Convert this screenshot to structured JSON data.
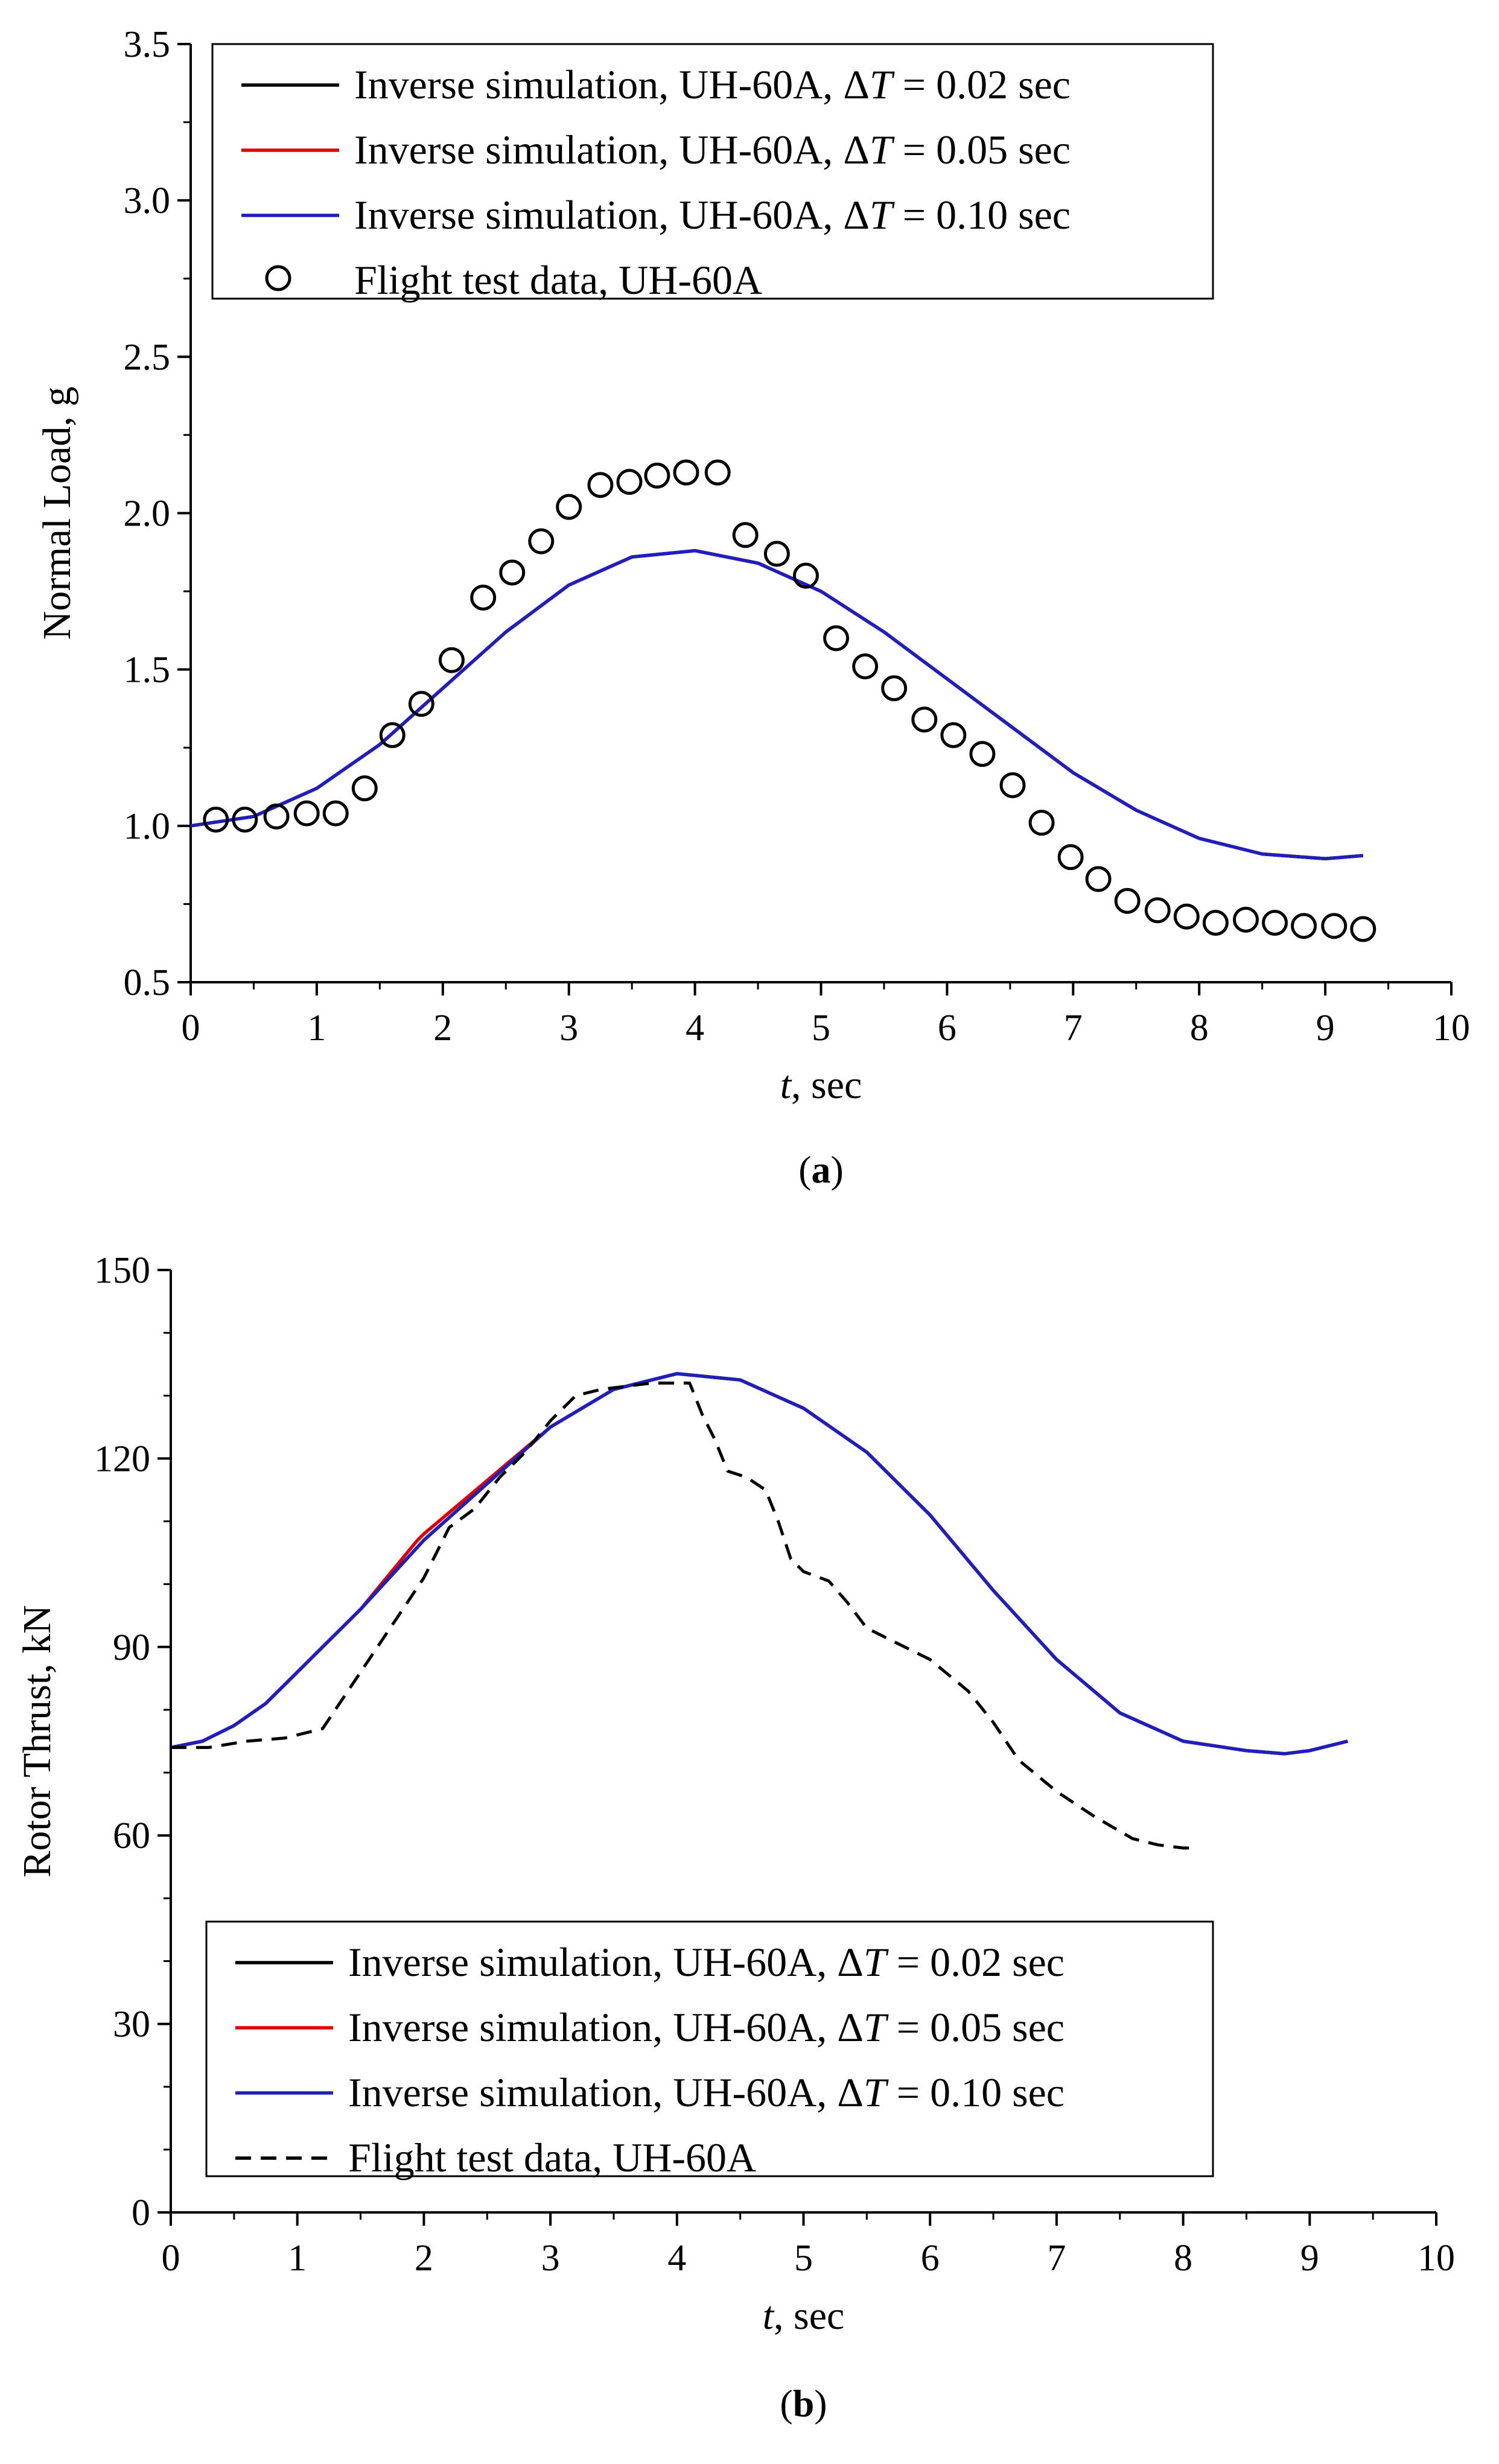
{
  "chart_data": [
    {
      "type": "line",
      "panel_label": "(a)",
      "xlabel": "t, sec",
      "ylabel": "Normal Load, g",
      "xlim": [
        0,
        10
      ],
      "ylim": [
        0.5,
        3.5
      ],
      "xticks": [
        "0",
        "1",
        "2",
        "3",
        "4",
        "5",
        "6",
        "7",
        "8",
        "9",
        "10"
      ],
      "yticks": [
        "0.5",
        "1.0",
        "1.5",
        "2.0",
        "2.5",
        "3.0",
        "3.5"
      ],
      "legend_position": "top-center",
      "series": [
        {
          "name": "Inverse simulation, UH-60A, ΔT = 0.02 sec",
          "legend_prefix": "Inverse simulation, UH-60A, Δ",
          "legend_suffix": " = 0.02 sec",
          "color": "#000000",
          "style": "solid",
          "x": [
            0,
            0.5,
            1,
            1.5,
            2,
            2.5,
            3,
            3.5,
            4,
            4.5,
            5,
            5.5,
            6,
            6.5,
            7,
            7.5,
            8,
            8.5,
            9,
            9.3
          ],
          "y": [
            1.0,
            1.03,
            1.12,
            1.26,
            1.44,
            1.62,
            1.77,
            1.86,
            1.88,
            1.84,
            1.75,
            1.62,
            1.47,
            1.32,
            1.17,
            1.05,
            0.96,
            0.91,
            0.895,
            0.905
          ]
        },
        {
          "name": "Inverse simulation, UH-60A, ΔT = 0.05 sec",
          "legend_prefix": "Inverse simulation, UH-60A, Δ",
          "legend_suffix": " = 0.05 sec",
          "color": "#e00000",
          "style": "solid",
          "x": [
            0,
            0.5,
            1,
            1.5,
            2,
            2.5,
            3,
            3.5,
            4,
            4.5,
            5,
            5.5,
            6,
            6.5,
            7,
            7.5,
            8,
            8.5,
            9,
            9.3
          ],
          "y": [
            1.0,
            1.03,
            1.12,
            1.26,
            1.44,
            1.62,
            1.77,
            1.86,
            1.88,
            1.84,
            1.75,
            1.62,
            1.47,
            1.32,
            1.17,
            1.05,
            0.96,
            0.91,
            0.895,
            0.905
          ]
        },
        {
          "name": "Inverse simulation, UH-60A, ΔT = 0.10 sec",
          "legend_prefix": "Inverse simulation, UH-60A, Δ",
          "legend_suffix": " = 0.10 sec",
          "color": "#1f1fbf",
          "style": "solid",
          "x": [
            0,
            0.5,
            1,
            1.5,
            2,
            2.5,
            3,
            3.5,
            4,
            4.5,
            5,
            5.5,
            6,
            6.5,
            7,
            7.5,
            8,
            8.5,
            9,
            9.3
          ],
          "y": [
            1.0,
            1.03,
            1.12,
            1.26,
            1.44,
            1.62,
            1.77,
            1.86,
            1.88,
            1.84,
            1.75,
            1.62,
            1.47,
            1.32,
            1.17,
            1.05,
            0.96,
            0.91,
            0.895,
            0.905
          ]
        },
        {
          "name": "Flight test data, UH-60A",
          "legend_prefix": "Flight test data, UH-60A",
          "legend_suffix": "",
          "color": "#000000",
          "style": "markers",
          "x": [
            0.2,
            0.43,
            0.68,
            0.92,
            1.15,
            1.38,
            1.6,
            1.83,
            2.07,
            2.32,
            2.55,
            2.78,
            3.0,
            3.25,
            3.48,
            3.7,
            3.93,
            4.18,
            4.4,
            4.65,
            4.88,
            5.12,
            5.35,
            5.58,
            5.82,
            6.05,
            6.28,
            6.52,
            6.75,
            6.98,
            7.2,
            7.43,
            7.67,
            7.9,
            8.13,
            8.37,
            8.6,
            8.83,
            9.07,
            9.3
          ],
          "y": [
            1.02,
            1.02,
            1.03,
            1.04,
            1.04,
            1.12,
            1.29,
            1.39,
            1.53,
            1.73,
            1.81,
            1.91,
            2.02,
            2.09,
            2.1,
            2.12,
            2.13,
            2.13,
            1.93,
            1.87,
            1.8,
            1.6,
            1.51,
            1.44,
            1.34,
            1.29,
            1.23,
            1.13,
            1.01,
            0.9,
            0.83,
            0.76,
            0.73,
            0.71,
            0.69,
            0.7,
            0.69,
            0.68,
            0.68,
            0.67
          ]
        }
      ]
    },
    {
      "type": "line",
      "panel_label": "(b)",
      "xlabel": "t, sec",
      "ylabel": "Rotor Thrust, kN",
      "xlim": [
        0,
        10
      ],
      "ylim": [
        0,
        150
      ],
      "xticks": [
        "0",
        "1",
        "2",
        "3",
        "4",
        "5",
        "6",
        "7",
        "8",
        "9",
        "10"
      ],
      "yticks": [
        "0",
        "30",
        "60",
        "90",
        "120",
        "150"
      ],
      "legend_position": "bottom-center",
      "series": [
        {
          "name": "Inverse simulation, UH-60A, ΔT = 0.02 sec",
          "legend_prefix": "Inverse simulation, UH-60A, Δ",
          "legend_suffix": " = 0.02 sec",
          "color": "#000000",
          "style": "solid",
          "x": [
            0,
            0.25,
            0.5,
            0.75,
            1,
            1.5,
            2,
            2.5,
            3,
            3.5,
            4,
            4.5,
            5,
            5.5,
            6,
            6.5,
            7,
            7.5,
            8,
            8.5,
            8.8,
            9,
            9.3
          ],
          "y": [
            74,
            75,
            77.5,
            81,
            86,
            96,
            107,
            116,
            125,
            131,
            133.5,
            132.5,
            128,
            121,
            111,
            99,
            88,
            79.5,
            75,
            73.5,
            73,
            73.5,
            75
          ]
        },
        {
          "name": "Inverse simulation, UH-60A, ΔT = 0.05 sec",
          "legend_prefix": "Inverse simulation, UH-60A, Δ",
          "legend_suffix": " = 0.05 sec",
          "color": "#e00000",
          "style": "solid",
          "x": [
            0,
            0.25,
            0.5,
            0.75,
            1,
            1.5,
            1.95,
            2.0,
            2.5,
            3,
            3.5,
            4,
            4.5,
            5,
            5.5,
            6,
            6.5,
            7,
            7.5,
            8,
            8.5,
            8.8,
            9,
            9.3
          ],
          "y": [
            74,
            75,
            77.5,
            81,
            86,
            96,
            107,
            108,
            116.5,
            125,
            131,
            133.5,
            132.5,
            128,
            121,
            111,
            99,
            88,
            79.5,
            75,
            73.5,
            73,
            73.5,
            75
          ]
        },
        {
          "name": "Inverse simulation, UH-60A, ΔT = 0.10 sec",
          "legend_prefix": "Inverse simulation, UH-60A, Δ",
          "legend_suffix": " = 0.10 sec",
          "color": "#1f1fbf",
          "style": "solid",
          "x": [
            0,
            0.25,
            0.5,
            0.75,
            1,
            1.5,
            2,
            2.5,
            3,
            3.5,
            4,
            4.5,
            5,
            5.5,
            6,
            6.5,
            7,
            7.5,
            8,
            8.5,
            8.8,
            9,
            9.3
          ],
          "y": [
            74,
            75,
            77.5,
            81,
            86,
            96,
            107,
            116,
            125,
            131,
            133.5,
            132.5,
            128,
            121,
            111,
            99,
            88,
            79.5,
            75,
            73.5,
            73,
            73.5,
            75
          ]
        },
        {
          "name": "Flight test data, UH-60A",
          "legend_prefix": "Flight test data, UH-60A",
          "legend_suffix": "",
          "color": "#000000",
          "style": "dashed",
          "x": [
            0,
            0.3,
            0.6,
            0.9,
            1.2,
            1.5,
            1.8,
            2.0,
            2.2,
            2.4,
            2.6,
            2.8,
            3.0,
            3.2,
            3.4,
            3.6,
            3.8,
            4.0,
            4.1,
            4.2,
            4.3,
            4.4,
            4.55,
            4.7,
            4.8,
            4.9,
            5.0,
            5.2,
            5.35,
            5.5,
            5.7,
            6.0,
            6.3,
            6.5,
            6.7,
            7.0,
            7.3,
            7.6,
            7.8,
            8.0,
            8.05
          ],
          "y": [
            74,
            74,
            75,
            75.5,
            77,
            86,
            95,
            101,
            109,
            112,
            117,
            121,
            126,
            130,
            131,
            131.5,
            132,
            132,
            132,
            127,
            123,
            118,
            117,
            115,
            110,
            104,
            102,
            100.5,
            97,
            93,
            91,
            88,
            83,
            78,
            72,
            67,
            63,
            59.5,
            58.5,
            58,
            58
          ]
        }
      ]
    }
  ]
}
